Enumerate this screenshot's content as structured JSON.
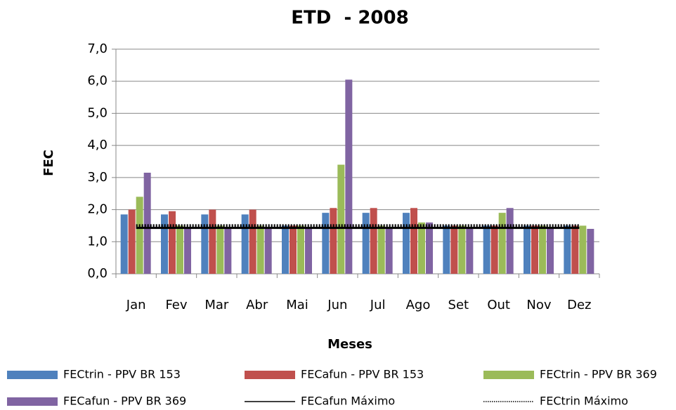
{
  "chart_data": {
    "type": "bar",
    "title": "ETD  - 2008",
    "xlabel": "Meses",
    "ylabel": "FEC",
    "categories": [
      "Jan",
      "Fev",
      "Mar",
      "Abr",
      "Mai",
      "Jun",
      "Jul",
      "Ago",
      "Set",
      "Out",
      "Nov",
      "Dez"
    ],
    "series": [
      {
        "name": "FECtrin - PPV BR 153",
        "color": "#4f81bd",
        "values": [
          1.85,
          1.85,
          1.85,
          1.85,
          1.5,
          1.9,
          1.9,
          1.9,
          1.5,
          1.5,
          1.5,
          1.5
        ]
      },
      {
        "name": "FECafun - PPV BR 153",
        "color": "#c0504d",
        "values": [
          2.0,
          1.95,
          2.0,
          2.0,
          1.5,
          2.05,
          2.05,
          2.05,
          1.5,
          1.5,
          1.5,
          1.5
        ]
      },
      {
        "name": "FECtrin - PPV BR 369",
        "color": "#9bbb59",
        "values": [
          2.4,
          1.5,
          1.5,
          1.5,
          1.5,
          3.4,
          1.5,
          1.6,
          1.5,
          1.9,
          1.5,
          1.5
        ]
      },
      {
        "name": "FECafun - PPV BR 369",
        "color": "#8064a2",
        "values": [
          3.15,
          1.45,
          1.45,
          1.45,
          1.45,
          6.05,
          1.45,
          1.6,
          1.45,
          2.05,
          1.45,
          1.4
        ]
      },
      {
        "name": "FECafun Máximo",
        "color": "#000000",
        "type": "line",
        "style": "solid",
        "values": [
          1.43,
          1.43,
          1.43,
          1.43,
          1.43,
          1.43,
          1.43,
          1.43,
          1.43,
          1.43,
          1.43,
          1.43
        ]
      },
      {
        "name": "FECtrin Máximo",
        "color": "#000000",
        "type": "line",
        "style": "dotted",
        "values": [
          1.5,
          1.5,
          1.5,
          1.5,
          1.5,
          1.5,
          1.5,
          1.5,
          1.5,
          1.5,
          1.5,
          1.5
        ]
      }
    ],
    "ylim": [
      0,
      7
    ],
    "yticks": [
      {
        "value": 0,
        "label": "0,0"
      },
      {
        "value": 1,
        "label": "1,0"
      },
      {
        "value": 2,
        "label": "2,0"
      },
      {
        "value": 3,
        "label": "3,0"
      },
      {
        "value": 4,
        "label": "4,0"
      },
      {
        "value": 5,
        "label": "5,0"
      },
      {
        "value": 6,
        "label": "6,0"
      },
      {
        "value": 7,
        "label": "7,0"
      }
    ],
    "grid": true,
    "legend": "bottom"
  }
}
